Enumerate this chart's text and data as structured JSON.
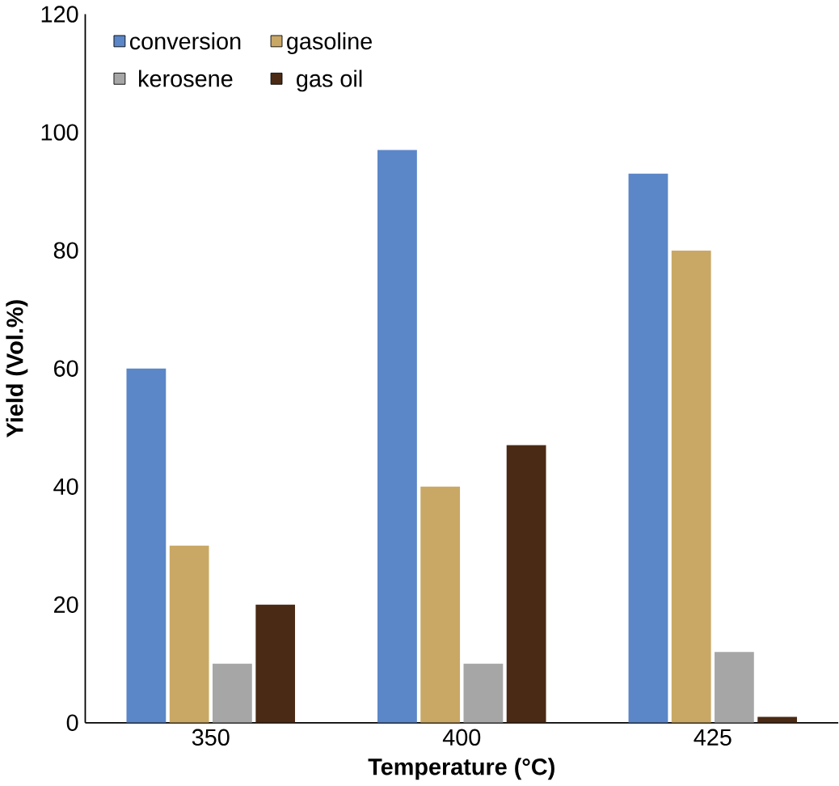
{
  "chart_data": {
    "type": "bar",
    "xlabel": "Temperature (°C)",
    "ylabel": "Yield (Vol.%)",
    "categories": [
      "350",
      "400",
      "425"
    ],
    "series": [
      {
        "name": "conversion",
        "color": "#5b86c8",
        "values": [
          60,
          97,
          93
        ]
      },
      {
        "name": "gasoline",
        "color": "#c9a865",
        "values": [
          30,
          40,
          80
        ]
      },
      {
        "name": "kerosene",
        "color": "#a6a6a6",
        "values": [
          10,
          10,
          12
        ]
      },
      {
        "name": "gas oil",
        "color": "#4a2a14",
        "values": [
          20,
          47,
          1
        ]
      }
    ],
    "ylim": [
      0,
      120
    ],
    "yticks": [
      0,
      20,
      40,
      60,
      80,
      100,
      120
    ],
    "grid": false,
    "legend": "top"
  }
}
